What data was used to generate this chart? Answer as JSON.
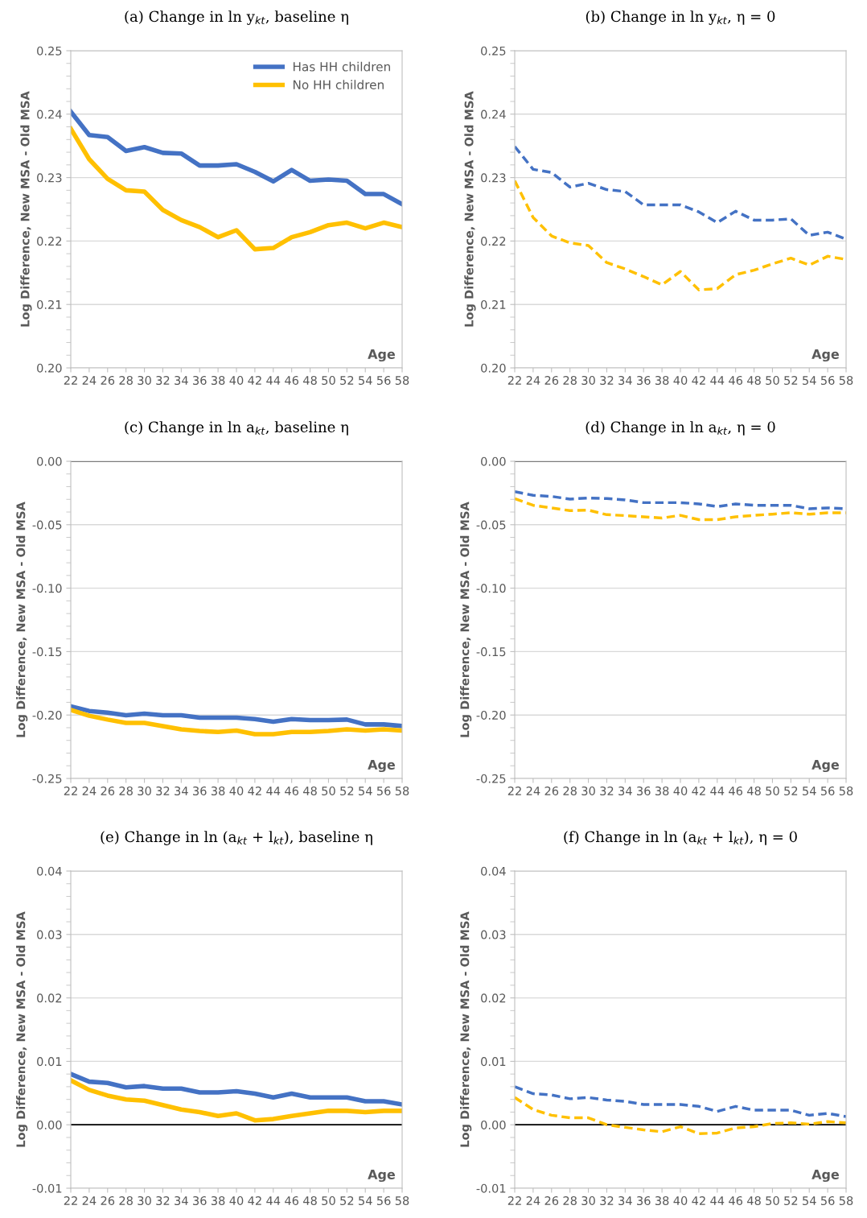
{
  "chart_data": [
    {
      "type": "line",
      "title": "(a) Change in ln y$_{kt}$, baseline η",
      "xlabel": "Age",
      "ylabel": "Log Difference, New MSA - Old MSA",
      "categories": [
        "22",
        "24",
        "26",
        "28",
        "30",
        "32",
        "34",
        "36",
        "38",
        "40",
        "42",
        "44",
        "46",
        "48",
        "50",
        "52",
        "54",
        "56",
        "58"
      ],
      "ylim": [
        0.2,
        0.25
      ],
      "yticks": [
        {
          "value": 0.2,
          "label": "0.20"
        },
        0.21,
        0.22,
        0.23,
        0.24,
        0.25
      ],
      "grid": "y",
      "legend": "top right",
      "line_style": "solid",
      "series": [
        {
          "name": "Has HH children",
          "color": "#4472c4",
          "values": [
            0.2404,
            0.2367,
            0.2364,
            0.2342,
            0.2348,
            0.2339,
            0.2338,
            0.2319,
            0.2319,
            0.2321,
            0.2309,
            0.2294,
            0.2312,
            0.2295,
            0.2297,
            0.2295,
            0.2274,
            0.2274,
            0.2258
          ]
        },
        {
          "name": "No HH children",
          "color": "#ffc000",
          "values": [
            0.2377,
            0.2329,
            0.2298,
            0.228,
            0.2278,
            0.2249,
            0.2233,
            0.2222,
            0.2206,
            0.2217,
            0.2187,
            0.2189,
            0.2206,
            0.2214,
            0.2225,
            0.2229,
            0.222,
            0.2229,
            0.2222
          ]
        }
      ]
    },
    {
      "type": "line",
      "title": "(b) Change in ln y$_{kt}$, η = 0",
      "xlabel": "Age",
      "ylabel": "Log Difference, New MSA - Old MSA",
      "categories": [
        "22",
        "24",
        "26",
        "28",
        "30",
        "32",
        "34",
        "36",
        "38",
        "40",
        "42",
        "44",
        "46",
        "48",
        "50",
        "52",
        "54",
        "56",
        "58"
      ],
      "ylim": [
        0.2,
        0.25
      ],
      "yticks": [
        {
          "value": 0.2,
          "label": "0.20"
        },
        0.21,
        0.22,
        0.23,
        0.24,
        0.25
      ],
      "grid": "y",
      "line_style": "dashed",
      "series": [
        {
          "color": "#4472c4",
          "values": [
            0.2349,
            0.2313,
            0.2308,
            0.2285,
            0.2291,
            0.2281,
            0.2278,
            0.2257,
            0.2257,
            0.2257,
            0.2246,
            0.2229,
            0.2247,
            0.2233,
            0.2233,
            0.2235,
            0.2209,
            0.2214,
            0.2203
          ]
        },
        {
          "color": "#ffc000",
          "values": [
            0.2295,
            0.2237,
            0.2208,
            0.2197,
            0.2193,
            0.2166,
            0.2156,
            0.2144,
            0.2131,
            0.2152,
            0.2123,
            0.2125,
            0.2147,
            0.2154,
            0.2164,
            0.2173,
            0.2162,
            0.2176,
            0.2171
          ]
        }
      ]
    },
    {
      "type": "line",
      "title": "(c) Change in ln a$_{kt}$, baseline η",
      "xlabel": "Age",
      "ylabel": "Log Difference, New MSA - Old MSA",
      "categories": [
        "22",
        "24",
        "26",
        "28",
        "30",
        "32",
        "34",
        "36",
        "38",
        "40",
        "42",
        "44",
        "46",
        "48",
        "50",
        "52",
        "54",
        "56",
        "58"
      ],
      "ylim": [
        -0.25,
        0.0
      ],
      "yticks": [
        {
          "value": -0.25,
          "label": "-0.25"
        },
        {
          "value": -0.2,
          "label": "-0.20"
        },
        {
          "value": -0.15,
          "label": "-0.15"
        },
        {
          "value": -0.1,
          "label": "-0.10"
        },
        {
          "value": -0.05,
          "label": "-0.05"
        },
        {
          "value": 0,
          "label": "0.00"
        }
      ],
      "grid": "y",
      "line_style": "solid",
      "ref_lines": [
        {
          "axis": "y",
          "value": 0,
          "color": "#000000"
        }
      ],
      "series": [
        {
          "color": "#4472c4",
          "values": [
            -0.1932,
            -0.1968,
            -0.1981,
            -0.2002,
            -0.1989,
            -0.2002,
            -0.2002,
            -0.2021,
            -0.2021,
            -0.2021,
            -0.2032,
            -0.2053,
            -0.2032,
            -0.204,
            -0.204,
            -0.2036,
            -0.2074,
            -0.2074,
            -0.2087
          ]
        },
        {
          "color": "#ffc000",
          "values": [
            -0.196,
            -0.2006,
            -0.2036,
            -0.2062,
            -0.2062,
            -0.2087,
            -0.2113,
            -0.2126,
            -0.2134,
            -0.2123,
            -0.2151,
            -0.2151,
            -0.2134,
            -0.2134,
            -0.2126,
            -0.2113,
            -0.2123,
            -0.2113,
            -0.2123
          ]
        }
      ]
    },
    {
      "type": "line",
      "title": "(d) Change in ln a$_{kt}$, η = 0",
      "xlabel": "Age",
      "ylabel": "Log Difference, New MSA - Old MSA",
      "categories": [
        "22",
        "24",
        "26",
        "28",
        "30",
        "32",
        "34",
        "36",
        "38",
        "40",
        "42",
        "44",
        "46",
        "48",
        "50",
        "52",
        "54",
        "56",
        "58"
      ],
      "ylim": [
        -0.25,
        0.0
      ],
      "yticks": [
        {
          "value": -0.25,
          "label": "-0.25"
        },
        {
          "value": -0.2,
          "label": "-0.20"
        },
        {
          "value": -0.15,
          "label": "-0.15"
        },
        {
          "value": -0.1,
          "label": "-0.10"
        },
        {
          "value": -0.05,
          "label": "-0.05"
        },
        {
          "value": 0,
          "label": "0.00"
        }
      ],
      "grid": "y",
      "line_style": "dashed",
      "ref_lines": [
        {
          "axis": "y",
          "value": 0,
          "color": "#000000"
        }
      ],
      "series": [
        {
          "color": "#4472c4",
          "values": [
            -0.024,
            -0.0268,
            -0.0277,
            -0.0298,
            -0.0289,
            -0.0294,
            -0.0304,
            -0.0326,
            -0.0326,
            -0.0326,
            -0.0336,
            -0.0357,
            -0.0336,
            -0.0347,
            -0.0347,
            -0.0347,
            -0.0374,
            -0.0368,
            -0.0374
          ]
        },
        {
          "color": "#ffc000",
          "values": [
            -0.0294,
            -0.0347,
            -0.0368,
            -0.0389,
            -0.0385,
            -0.0421,
            -0.0428,
            -0.0438,
            -0.0447,
            -0.0426,
            -0.046,
            -0.046,
            -0.0438,
            -0.0426,
            -0.0417,
            -0.0406,
            -0.0417,
            -0.0406,
            -0.0406
          ]
        }
      ]
    },
    {
      "type": "line",
      "title": "(e) Change in ln (a$_{kt}$ + l$_{kt}$), baseline η",
      "xlabel": "Age",
      "ylabel": "Log Difference, New MSA - Old MSA",
      "categories": [
        "22",
        "24",
        "26",
        "28",
        "30",
        "32",
        "34",
        "36",
        "38",
        "40",
        "42",
        "44",
        "46",
        "48",
        "50",
        "52",
        "54",
        "56",
        "58"
      ],
      "ylim": [
        -0.01,
        0.04
      ],
      "yticks": [
        {
          "value": -0.01,
          "label": "-0.01"
        },
        {
          "value": 0,
          "label": "0.00"
        },
        0.01,
        0.02,
        0.03,
        0.04
      ],
      "grid": "y",
      "line_style": "solid",
      "ref_lines": [
        {
          "axis": "y",
          "value": 0,
          "color": "#000000"
        }
      ],
      "series": [
        {
          "color": "#4472c4",
          "values": [
            0.008,
            0.0068,
            0.0066,
            0.0059,
            0.0061,
            0.0057,
            0.0057,
            0.0051,
            0.0051,
            0.0053,
            0.0049,
            0.0043,
            0.0049,
            0.0043,
            0.0043,
            0.0043,
            0.0037,
            0.0037,
            0.0032
          ]
        },
        {
          "color": "#ffc000",
          "values": [
            0.007,
            0.0055,
            0.0046,
            0.004,
            0.0038,
            0.0031,
            0.0024,
            0.002,
            0.0014,
            0.0018,
            0.0007,
            0.0009,
            0.0014,
            0.0018,
            0.0022,
            0.0022,
            0.002,
            0.0022,
            0.0022
          ]
        }
      ]
    },
    {
      "type": "line",
      "title": "(f) Change in ln (a$_{kt}$ + l$_{kt}$), η = 0",
      "xlabel": "Age",
      "ylabel": "Log Difference, New MSA - Old MSA",
      "categories": [
        "22",
        "24",
        "26",
        "28",
        "30",
        "32",
        "34",
        "36",
        "38",
        "40",
        "42",
        "44",
        "46",
        "48",
        "50",
        "52",
        "54",
        "56",
        "58"
      ],
      "ylim": [
        -0.01,
        0.04
      ],
      "yticks": [
        {
          "value": -0.01,
          "label": "-0.01"
        },
        {
          "value": 0,
          "label": "0.00"
        },
        0.01,
        0.02,
        0.03,
        0.04
      ],
      "grid": "y",
      "line_style": "dashed",
      "ref_lines": [
        {
          "axis": "y",
          "value": 0,
          "color": "#000000"
        }
      ],
      "series": [
        {
          "color": "#4472c4",
          "values": [
            0.006,
            0.0049,
            0.0047,
            0.0041,
            0.0043,
            0.0039,
            0.0037,
            0.0032,
            0.0032,
            0.0032,
            0.0029,
            0.0021,
            0.0029,
            0.0023,
            0.0023,
            0.0023,
            0.0015,
            0.0018,
            0.0013
          ]
        },
        {
          "color": "#ffc000",
          "values": [
            0.0043,
            0.0024,
            0.0015,
            0.0011,
            0.0011,
            0.0,
            -0.0004,
            -0.0008,
            -0.0011,
            -0.0003,
            -0.0014,
            -0.0013,
            -0.0005,
            -0.0003,
            0.0002,
            0.0003,
            0.0001,
            0.0005,
            0.0003
          ]
        }
      ]
    }
  ]
}
